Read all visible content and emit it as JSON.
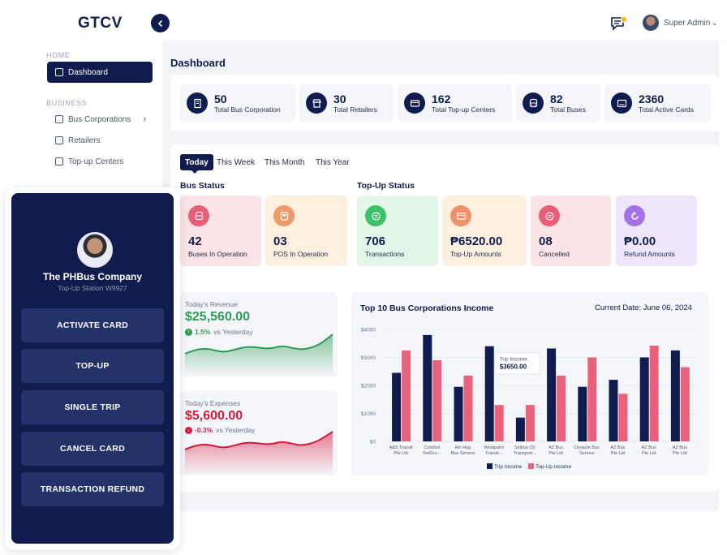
{
  "app": {
    "logo": "GTCV"
  },
  "header": {
    "user_name": "Super Admin"
  },
  "sidebar": {
    "home_label": "HOME",
    "business_label": "BUSINESS",
    "items": [
      {
        "label": "Dashboard"
      },
      {
        "label": "Bus Corporations"
      },
      {
        "label": "Retailers"
      },
      {
        "label": "Top-up Centers"
      }
    ]
  },
  "main": {
    "title": "Dashboard",
    "stats": [
      {
        "value": "50",
        "label": "Total Bus Corporation",
        "icon": "building-icon"
      },
      {
        "value": "30",
        "label": "Total Retailers",
        "icon": "store-icon"
      },
      {
        "value": "162",
        "label": "Total Top-up Centers",
        "icon": "card-icon"
      },
      {
        "value": "82",
        "label": "Total Buses",
        "icon": "bus-icon"
      },
      {
        "value": "2360",
        "label": "Total Active Cards",
        "icon": "id-card-icon"
      }
    ],
    "tabs": [
      "Today",
      "This Week",
      "This Month",
      "This Year"
    ],
    "bus_status_title": "Bus Status",
    "topup_status_title": "Top-Up Status",
    "tiles": [
      {
        "value": "42",
        "label": "Buses In Operation",
        "bg": "#fbe3e6",
        "icon_bg": "#e85d78"
      },
      {
        "value": "03",
        "label": "POS In Operation",
        "bg": "#fdf0df",
        "icon_bg": "#ef9a6a"
      },
      {
        "value": "706",
        "label": "Transactions",
        "bg": "#e3f6e7",
        "icon_bg": "#3fbf6a"
      },
      {
        "value": "₱6520.00",
        "label": "Top-Up Amounts",
        "bg": "#fdf0df",
        "icon_bg": "#f0906a"
      },
      {
        "value": "08",
        "label": "Cancelled",
        "bg": "#fbe3e6",
        "icon_bg": "#e85d78"
      },
      {
        "value": "₱0.00",
        "label": "Refund Amounts",
        "bg": "#efe6fb",
        "icon_bg": "#a472e8"
      }
    ],
    "revenue": {
      "label": "Today's Revenue",
      "value": "$25,560.00",
      "change": "1.5%",
      "suffix": "vs Yesterday",
      "color": "#2e9c57"
    },
    "expenses": {
      "label": "Today's Expenses",
      "value": "$5,600.00",
      "change": "-0.3%",
      "suffix": "vs Yesterday",
      "color": "#d7193f"
    },
    "chart_title": "Top 10 Bus Corporations Income",
    "chart_date": "Current Date: June 06, 2024"
  },
  "phone": {
    "company": "The PHBus Company",
    "station": "Top-Up Station W9927",
    "buttons": [
      "ACTIVATE CARD",
      "TOP-UP",
      "SINGLE TRIP",
      "CANCEL CARD",
      "TRANSACTION REFUND"
    ]
  },
  "chart_data": {
    "type": "bar",
    "title": "Top 10 Bus Corporations Income",
    "categories": [
      [
        "A&S Transit",
        "Pte Ltd"
      ],
      [
        "Comfort",
        "DelGro..."
      ],
      [
        "Hin Hup",
        "Bus Service"
      ],
      [
        "Westpoint",
        "Transit..."
      ],
      [
        "Sinbus (S)",
        "Transport..."
      ],
      [
        "AZ Bus",
        "Pte Ltd"
      ],
      [
        "Dynacle Bus",
        "Service"
      ],
      [
        "AZ Bus",
        "Pte Ltd"
      ],
      [
        "AZ Bus",
        "Pte Ltd"
      ],
      [
        "AZ Bus",
        "Pte Ltd"
      ]
    ],
    "series": [
      {
        "name": "Trip Income",
        "color": "#0f1c4d",
        "values": [
          2450,
          3800,
          1950,
          3400,
          850,
          3320,
          1950,
          2200,
          3000,
          3250
        ]
      },
      {
        "name": "Top-Up Income",
        "color": "#e8627e",
        "values": [
          3250,
          2900,
          2350,
          1300,
          1300,
          2350,
          3000,
          1700,
          3420,
          2650
        ]
      }
    ],
    "y_ticks": [
      "$0",
      "$1000",
      "$2000",
      "$3000",
      "$4000"
    ],
    "ylim": [
      0,
      4000
    ],
    "tooltip": {
      "label": "Trip Income:",
      "value": "$3650.00"
    },
    "legend": "bottom-center"
  }
}
